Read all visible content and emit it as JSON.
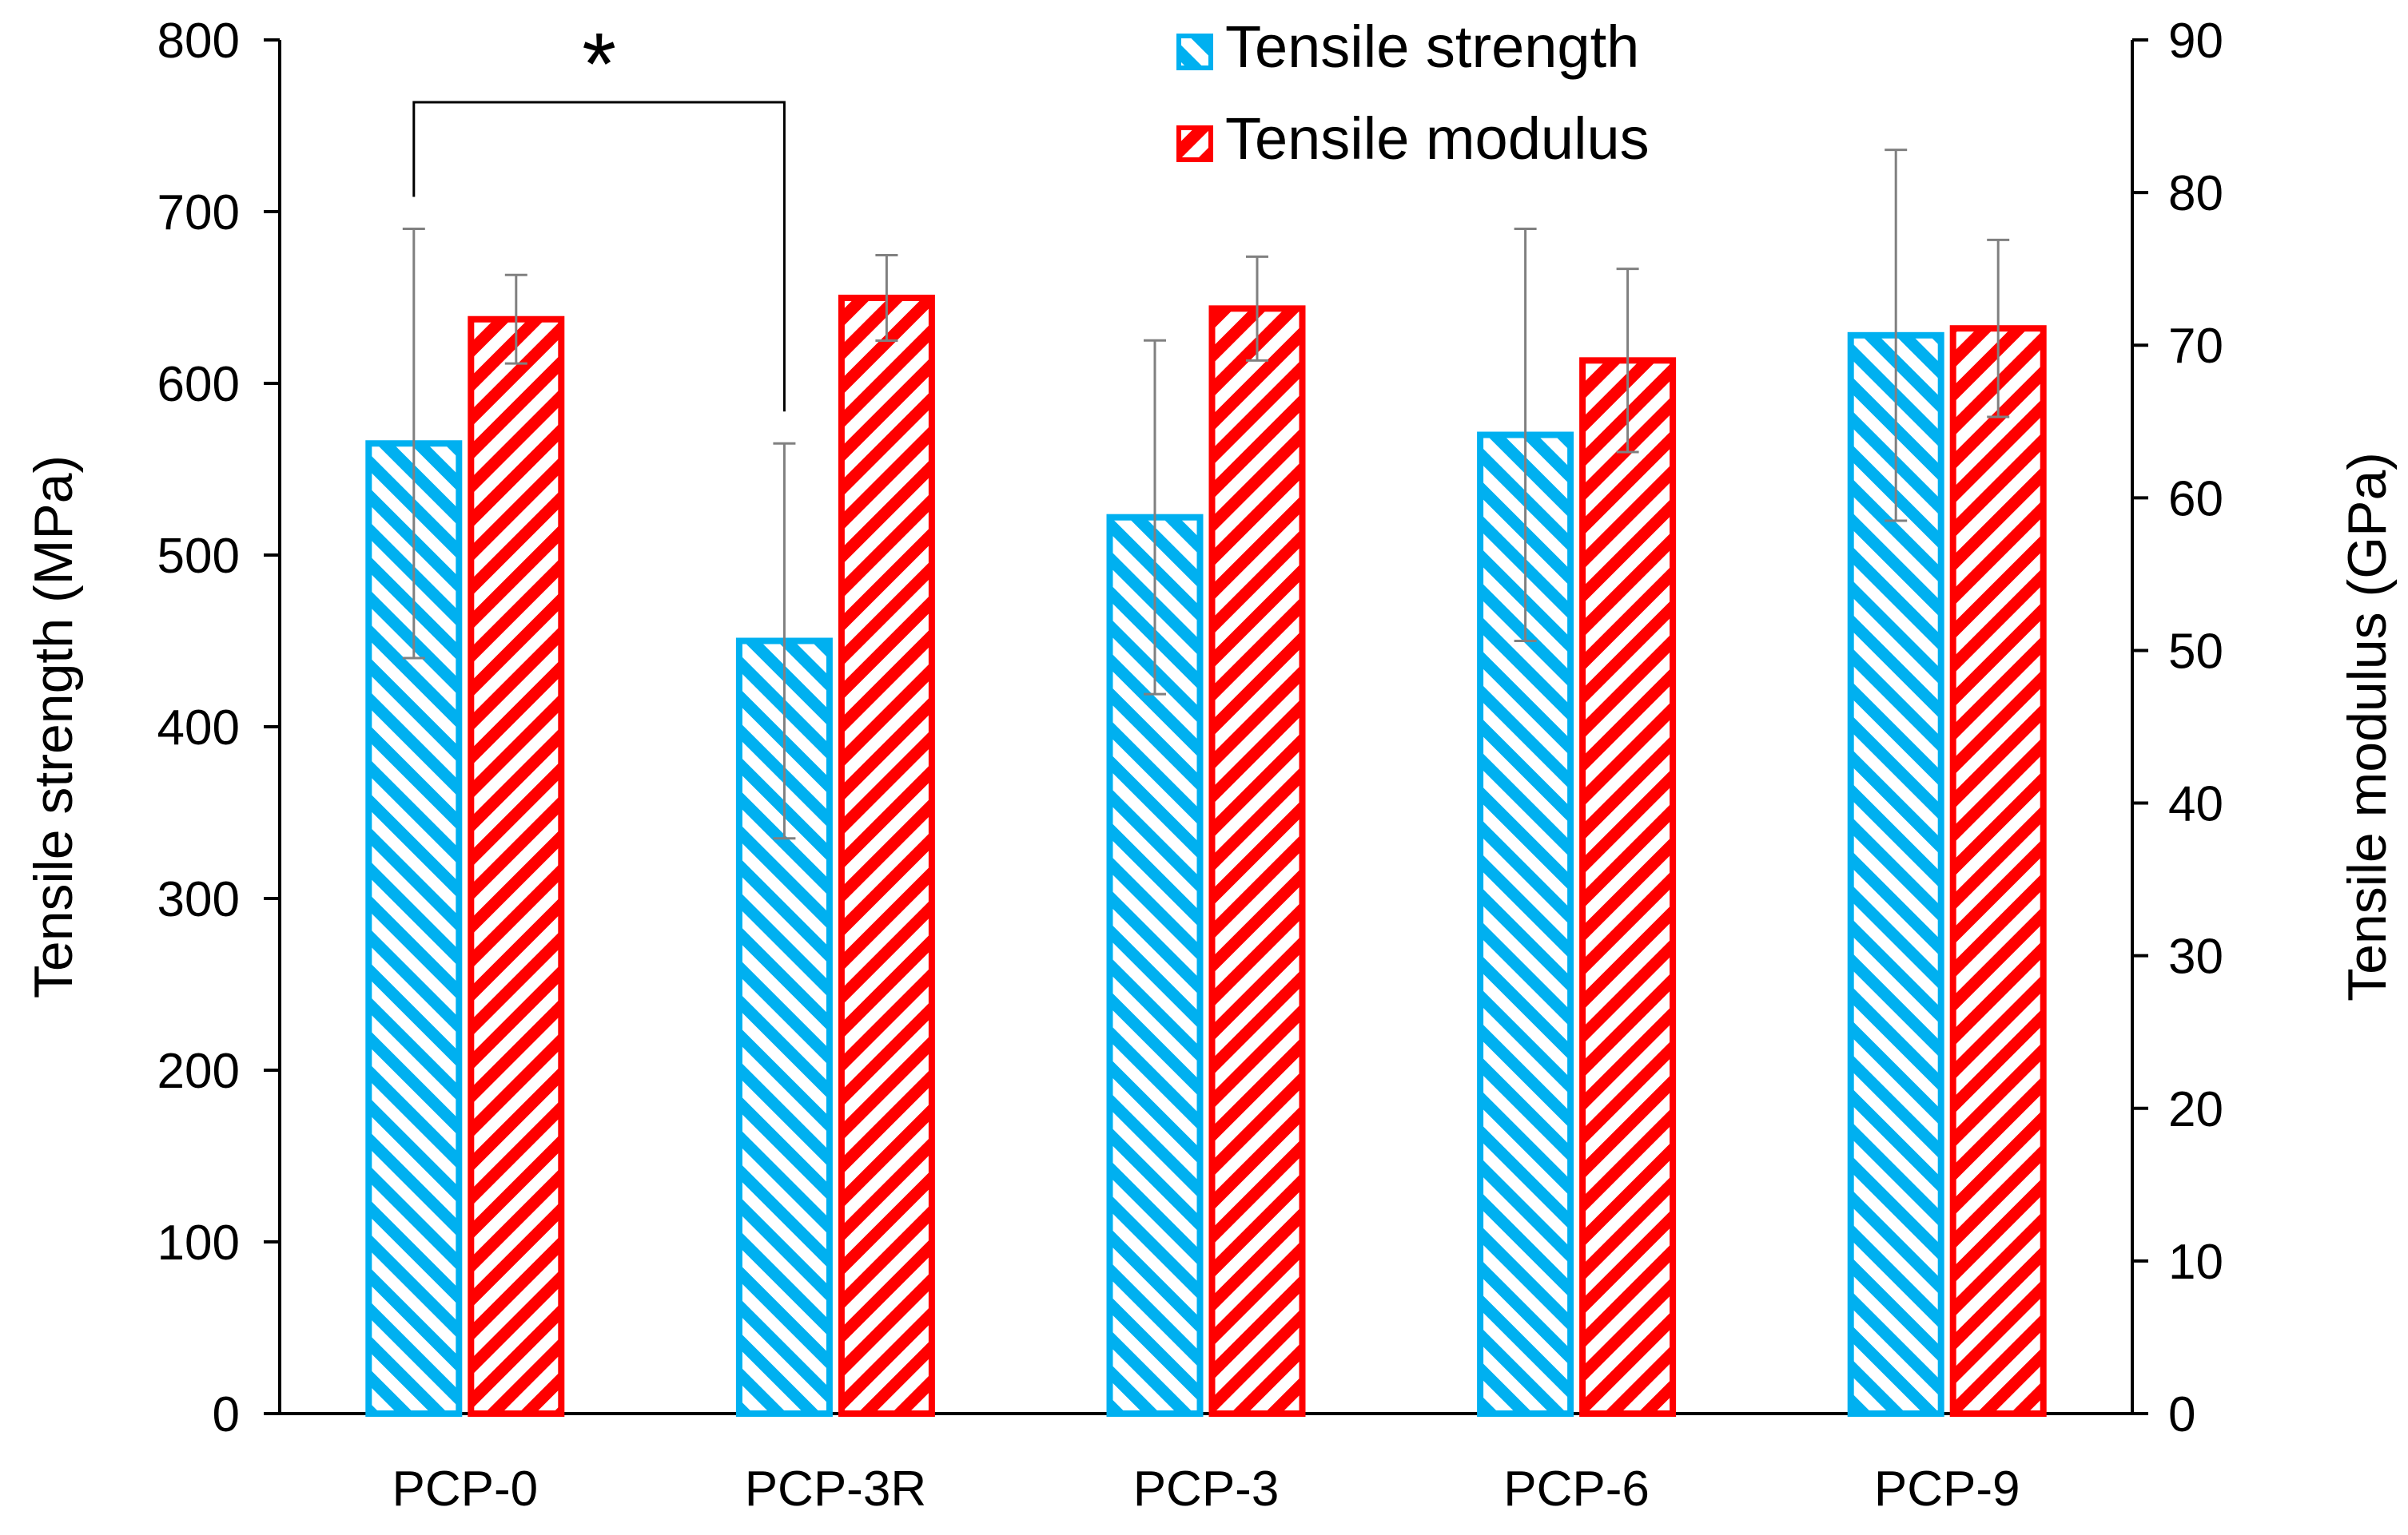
{
  "chart_data": {
    "type": "bar",
    "categories": [
      "PCP-0",
      "PCP-3R",
      "PCP-3",
      "PCP-6",
      "PCP-9"
    ],
    "series": [
      {
        "name": "Tensile strength",
        "axis": "left",
        "color": "#00b0f0",
        "hatch": "forward-diagonal",
        "values": [
          565,
          450,
          522,
          570,
          628
        ],
        "errors": [
          125,
          115,
          103,
          120,
          108
        ]
      },
      {
        "name": "Tensile modulus",
        "axis": "right",
        "color": "#ff0000",
        "hatch": "backward-diagonal",
        "values": [
          71.7,
          73.1,
          72.4,
          69.0,
          71.1
        ],
        "errors": [
          2.9,
          2.8,
          3.4,
          6.0,
          5.8
        ]
      }
    ],
    "y_left": {
      "label": "Tensile strength (MPa)",
      "min": 0,
      "max": 800,
      "ticks": [
        0,
        100,
        200,
        300,
        400,
        500,
        600,
        700,
        800
      ]
    },
    "y_right": {
      "label": "Tensile modulus  (GPa)",
      "min": 0,
      "max": 90,
      "ticks": [
        0,
        10,
        20,
        30,
        40,
        50,
        60,
        70,
        80,
        90
      ]
    },
    "annotation": {
      "text": "*",
      "between": [
        "PCP-0",
        "PCP-3R"
      ],
      "series": "Tensile strength"
    },
    "legend": {
      "position": "top-right-center"
    },
    "grid": false,
    "axis_color": "#000000",
    "errorbar_color": "#808080"
  }
}
